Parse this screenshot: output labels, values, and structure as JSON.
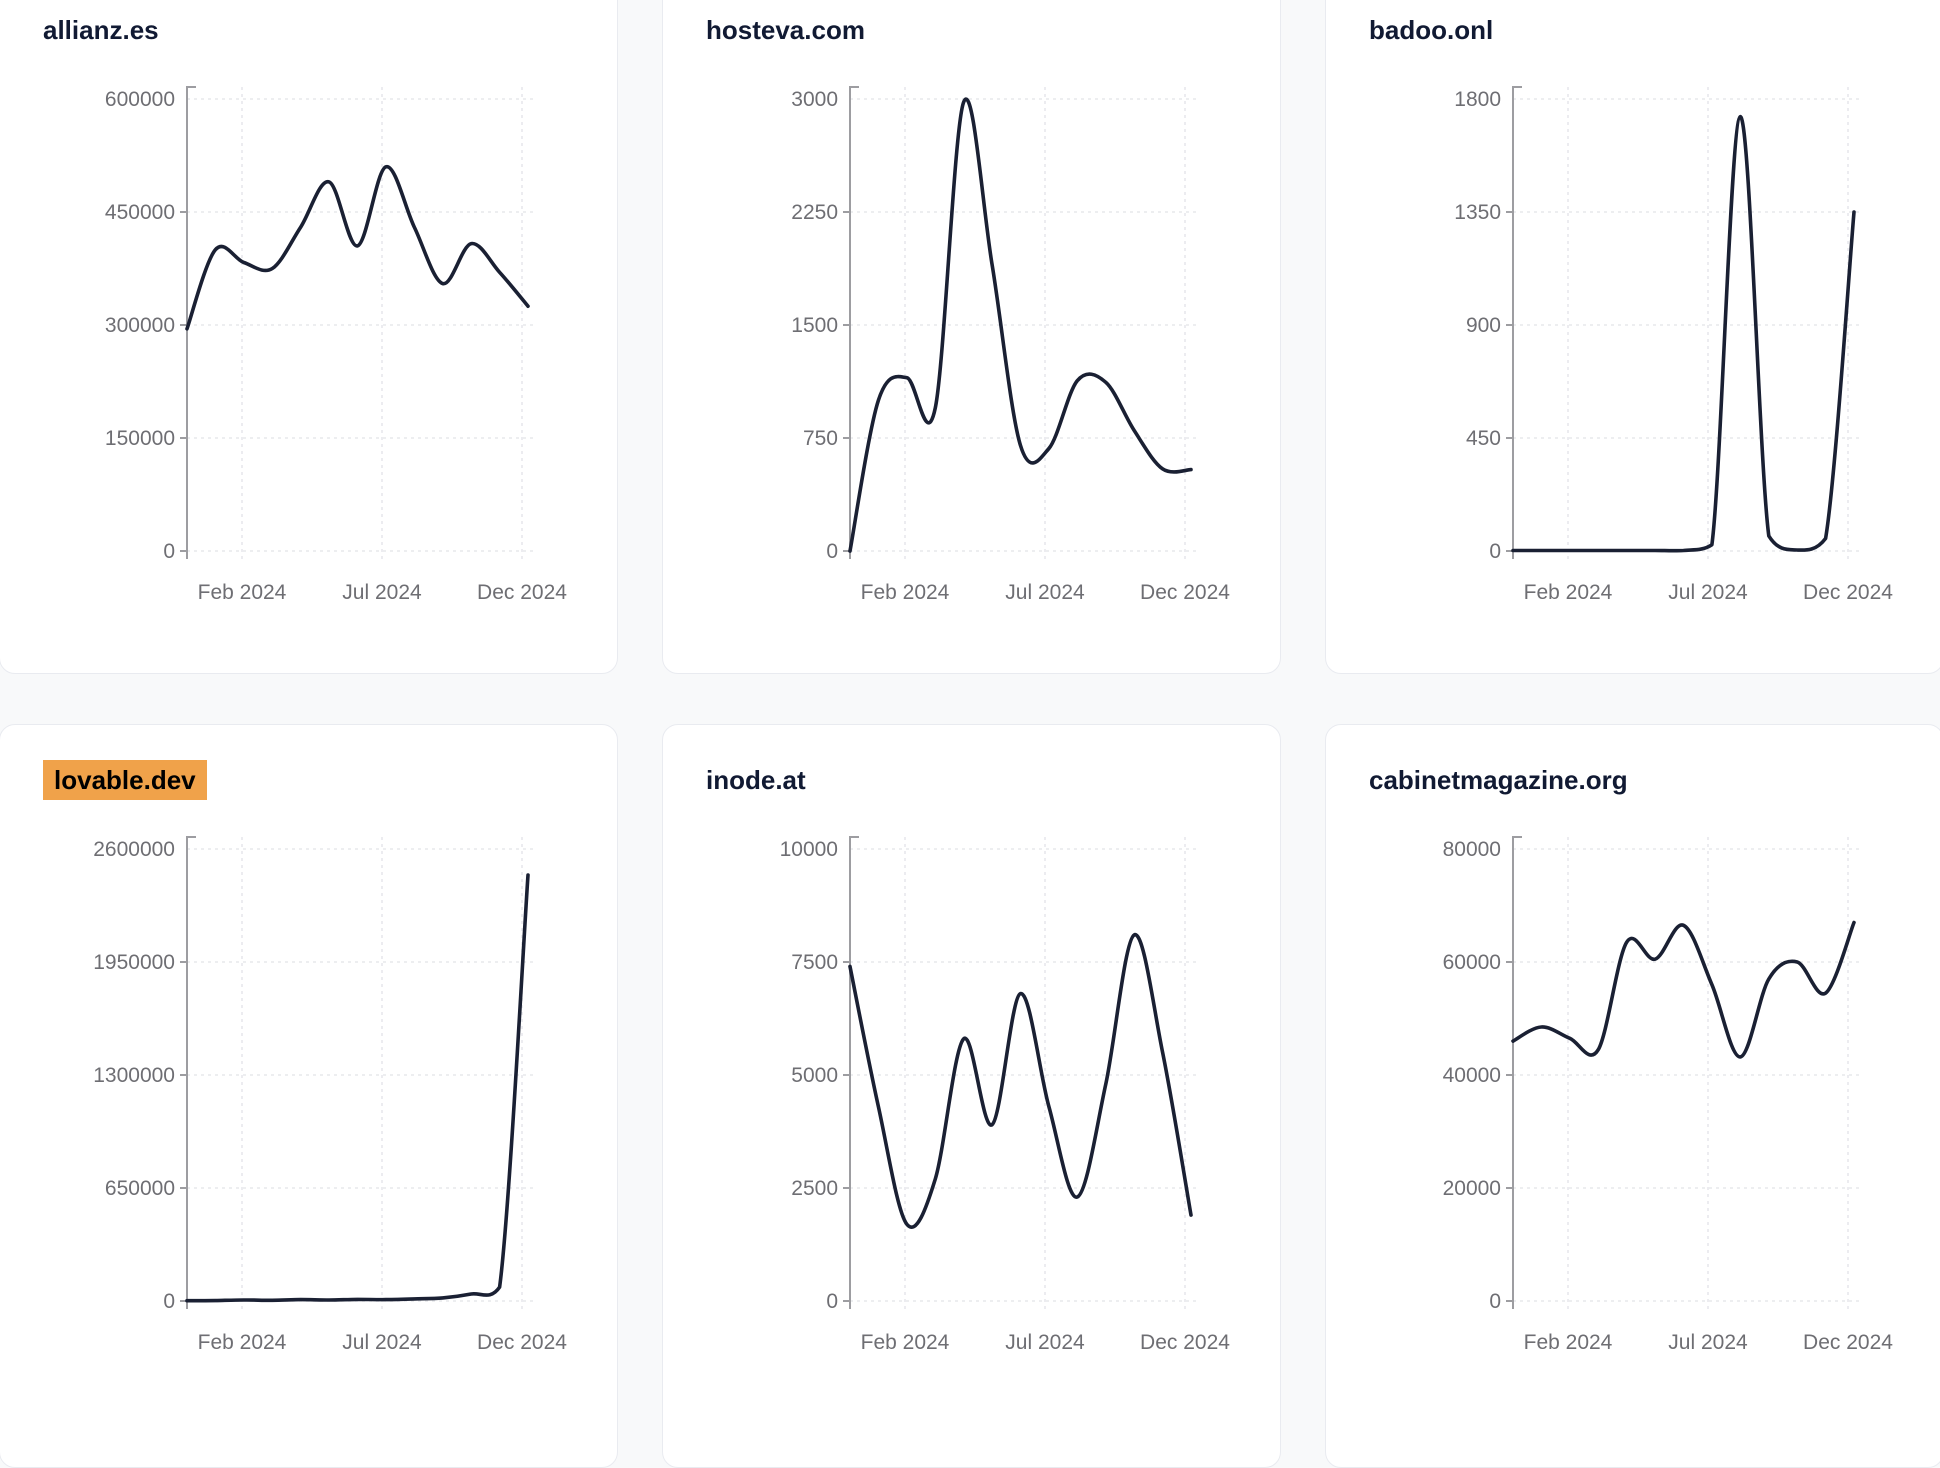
{
  "style": {
    "page_background": "#f8f9fa",
    "card_background": "#ffffff",
    "card_border": "#e9ebf0",
    "title_color": "#111a33",
    "highlight_color": "#f0a24a",
    "highlight_text_color": "#000000",
    "line_color": "#1a2033",
    "axis_color": "#9d9da1",
    "grid_color": "#e7e8ec",
    "tick_label_color": "#6e6e73"
  },
  "chart_data": [
    {
      "type": "line",
      "title": "allianz.es",
      "highlighted": false,
      "categories": [
        "2023-12",
        "2024-01",
        "2024-02",
        "2024-03",
        "2024-04",
        "2024-05",
        "2024-06",
        "2024-07",
        "2024-08",
        "2024-09",
        "2024-10",
        "2024-11",
        "2024-12"
      ],
      "values": [
        295000,
        400000,
        383000,
        375000,
        430000,
        490000,
        405000,
        510000,
        430000,
        355000,
        408000,
        370000,
        325000
      ],
      "ylim": [
        0,
        600000
      ],
      "y_ticks": [
        0,
        150000,
        300000,
        450000,
        600000
      ],
      "x_tick_labels": [
        "Feb 2024",
        "Jul 2024",
        "Dec 2024"
      ],
      "grid": true,
      "legend": "none"
    },
    {
      "type": "line",
      "title": "hosteva.com",
      "highlighted": false,
      "categories": [
        "2023-12",
        "2024-01",
        "2024-02",
        "2024-03",
        "2024-04",
        "2024-05",
        "2024-06",
        "2024-07",
        "2024-08",
        "2024-09",
        "2024-10",
        "2024-11",
        "2024-12"
      ],
      "values": [
        0,
        1000,
        1150,
        950,
        2980,
        1900,
        700,
        680,
        1130,
        1120,
        800,
        545,
        540
      ],
      "ylim": [
        0,
        3000
      ],
      "y_ticks": [
        0,
        750,
        1500,
        2250,
        3000
      ],
      "x_tick_labels": [
        "Feb 2024",
        "Jul 2024",
        "Dec 2024"
      ],
      "grid": true,
      "legend": "none"
    },
    {
      "type": "line",
      "title": "badoo.onl",
      "highlighted": false,
      "categories": [
        "2023-12",
        "2024-01",
        "2024-02",
        "2024-03",
        "2024-04",
        "2024-05",
        "2024-06",
        "2024-07",
        "2024-08",
        "2024-09",
        "2024-10",
        "2024-11",
        "2024-12"
      ],
      "values": [
        2,
        2,
        2,
        2,
        2,
        2,
        2,
        25,
        1730,
        60,
        4,
        50,
        1350
      ],
      "ylim": [
        0,
        1800
      ],
      "y_ticks": [
        0,
        450,
        900,
        1350,
        1800
      ],
      "x_tick_labels": [
        "Feb 2024",
        "Jul 2024",
        "Dec 2024"
      ],
      "grid": true,
      "legend": "none"
    },
    {
      "type": "line",
      "title": "lovable.dev",
      "highlighted": true,
      "categories": [
        "2023-12",
        "2024-01",
        "2024-02",
        "2024-03",
        "2024-04",
        "2024-05",
        "2024-06",
        "2024-07",
        "2024-08",
        "2024-09",
        "2024-10",
        "2024-11",
        "2024-12"
      ],
      "values": [
        1500,
        2500,
        6000,
        4000,
        8000,
        6000,
        9000,
        8000,
        12000,
        18000,
        40000,
        80000,
        2450000
      ],
      "ylim": [
        0,
        2600000
      ],
      "y_ticks": [
        0,
        650000,
        1300000,
        1950000,
        2600000
      ],
      "x_tick_labels": [
        "Feb 2024",
        "Jul 2024",
        "Dec 2024"
      ],
      "grid": true,
      "legend": "none"
    },
    {
      "type": "line",
      "title": "inode.at",
      "highlighted": false,
      "categories": [
        "2023-12",
        "2024-01",
        "2024-02",
        "2024-03",
        "2024-04",
        "2024-05",
        "2024-06",
        "2024-07",
        "2024-08",
        "2024-09",
        "2024-10",
        "2024-11",
        "2024-12"
      ],
      "values": [
        7400,
        4300,
        1700,
        2700,
        5800,
        3900,
        6800,
        4300,
        2300,
        4800,
        8100,
        5500,
        1900
      ],
      "ylim": [
        0,
        10000
      ],
      "y_ticks": [
        0,
        2500,
        5000,
        7500,
        10000
      ],
      "x_tick_labels": [
        "Feb 2024",
        "Jul 2024",
        "Dec 2024"
      ],
      "grid": true,
      "legend": "none"
    },
    {
      "type": "line",
      "title": "cabinetmagazine.org",
      "highlighted": false,
      "categories": [
        "2023-12",
        "2024-01",
        "2024-02",
        "2024-03",
        "2024-04",
        "2024-05",
        "2024-06",
        "2024-07",
        "2024-08",
        "2024-09",
        "2024-10",
        "2024-11",
        "2024-12"
      ],
      "values": [
        46000,
        48500,
        46500,
        44500,
        63500,
        60500,
        66500,
        56000,
        43200,
        57000,
        60000,
        54500,
        67000
      ],
      "ylim": [
        0,
        80000
      ],
      "y_ticks": [
        0,
        20000,
        40000,
        60000,
        80000
      ],
      "x_tick_labels": [
        "Feb 2024",
        "Jul 2024",
        "Dec 2024"
      ],
      "grid": true,
      "legend": "none"
    }
  ]
}
